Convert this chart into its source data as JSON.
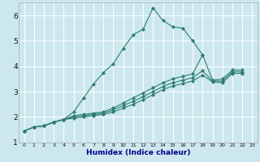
{
  "xlabel": "Humidex (Indice chaleur)",
  "bg_color": "#cce8ee",
  "grid_color": "#ffffff",
  "line_color": "#2e7d6e",
  "xlim": [
    -0.5,
    23.5
  ],
  "ylim": [
    1.0,
    6.5
  ],
  "xticks": [
    0,
    1,
    2,
    3,
    4,
    5,
    6,
    7,
    8,
    9,
    10,
    11,
    12,
    13,
    14,
    15,
    16,
    17,
    18,
    19,
    20,
    21,
    22,
    23
  ],
  "yticks": [
    1,
    2,
    3,
    4,
    5,
    6
  ],
  "series": [
    {
      "x": [
        0,
        1,
        2,
        3,
        4,
        5,
        6,
        7,
        8,
        9,
        10,
        11,
        12,
        13,
        14,
        15,
        16,
        17,
        18
      ],
      "y": [
        1.45,
        1.6,
        1.65,
        1.8,
        1.9,
        2.2,
        2.75,
        3.3,
        3.75,
        4.1,
        4.7,
        5.25,
        5.45,
        6.3,
        5.8,
        5.55,
        5.5,
        5.0,
        4.45
      ],
      "marker": true
    },
    {
      "x": [
        0,
        1,
        2,
        3,
        4,
        5,
        6,
        7,
        8,
        9,
        10,
        11,
        12,
        13,
        14,
        15,
        16,
        17,
        18,
        19,
        20,
        21,
        22
      ],
      "y": [
        1.45,
        1.6,
        1.65,
        1.8,
        1.9,
        2.05,
        2.1,
        2.15,
        2.2,
        2.35,
        2.55,
        2.75,
        2.95,
        3.15,
        3.35,
        3.5,
        3.6,
        3.7,
        4.45,
        3.45,
        3.5,
        3.85,
        3.85
      ],
      "marker": true
    },
    {
      "x": [
        0,
        1,
        2,
        3,
        4,
        5,
        6,
        7,
        8,
        9,
        10,
        11,
        12,
        13,
        14,
        15,
        16,
        17,
        18,
        19,
        20,
        21,
        22
      ],
      "y": [
        1.45,
        1.6,
        1.65,
        1.8,
        1.9,
        2.0,
        2.05,
        2.1,
        2.15,
        2.28,
        2.45,
        2.62,
        2.8,
        3.0,
        3.2,
        3.35,
        3.45,
        3.55,
        3.82,
        3.42,
        3.42,
        3.78,
        3.78
      ],
      "marker": true
    },
    {
      "x": [
        0,
        1,
        2,
        3,
        4,
        5,
        6,
        7,
        8,
        9,
        10,
        11,
        12,
        13,
        14,
        15,
        16,
        17,
        18,
        19,
        20,
        21,
        22
      ],
      "y": [
        1.45,
        1.6,
        1.65,
        1.8,
        1.9,
        1.95,
        2.0,
        2.05,
        2.1,
        2.2,
        2.35,
        2.5,
        2.68,
        2.88,
        3.08,
        3.22,
        3.32,
        3.42,
        3.65,
        3.38,
        3.35,
        3.72,
        3.72
      ],
      "marker": true
    }
  ]
}
